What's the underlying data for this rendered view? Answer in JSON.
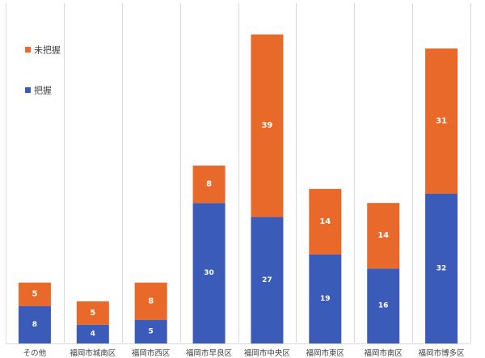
{
  "chart_data": {
    "type": "bar",
    "stacked": true,
    "categories": [
      "その他",
      "福岡市城南区",
      "福岡市西区",
      "福岡市早良区",
      "福岡市中央区",
      "福岡市東区",
      "福岡市南区",
      "福岡市博多区"
    ],
    "series": [
      {
        "name": "把握",
        "color": "#3a5bb8",
        "values": [
          8,
          4,
          5,
          30,
          27,
          19,
          16,
          32
        ]
      },
      {
        "name": "未把握",
        "color": "#e8692a",
        "values": [
          5,
          5,
          8,
          8,
          39,
          14,
          14,
          31
        ]
      }
    ],
    "ylim": [
      0,
      68
    ],
    "grid": "vertical-category-separators",
    "legend": "top-left",
    "title": "",
    "xlabel": "",
    "ylabel": ""
  }
}
